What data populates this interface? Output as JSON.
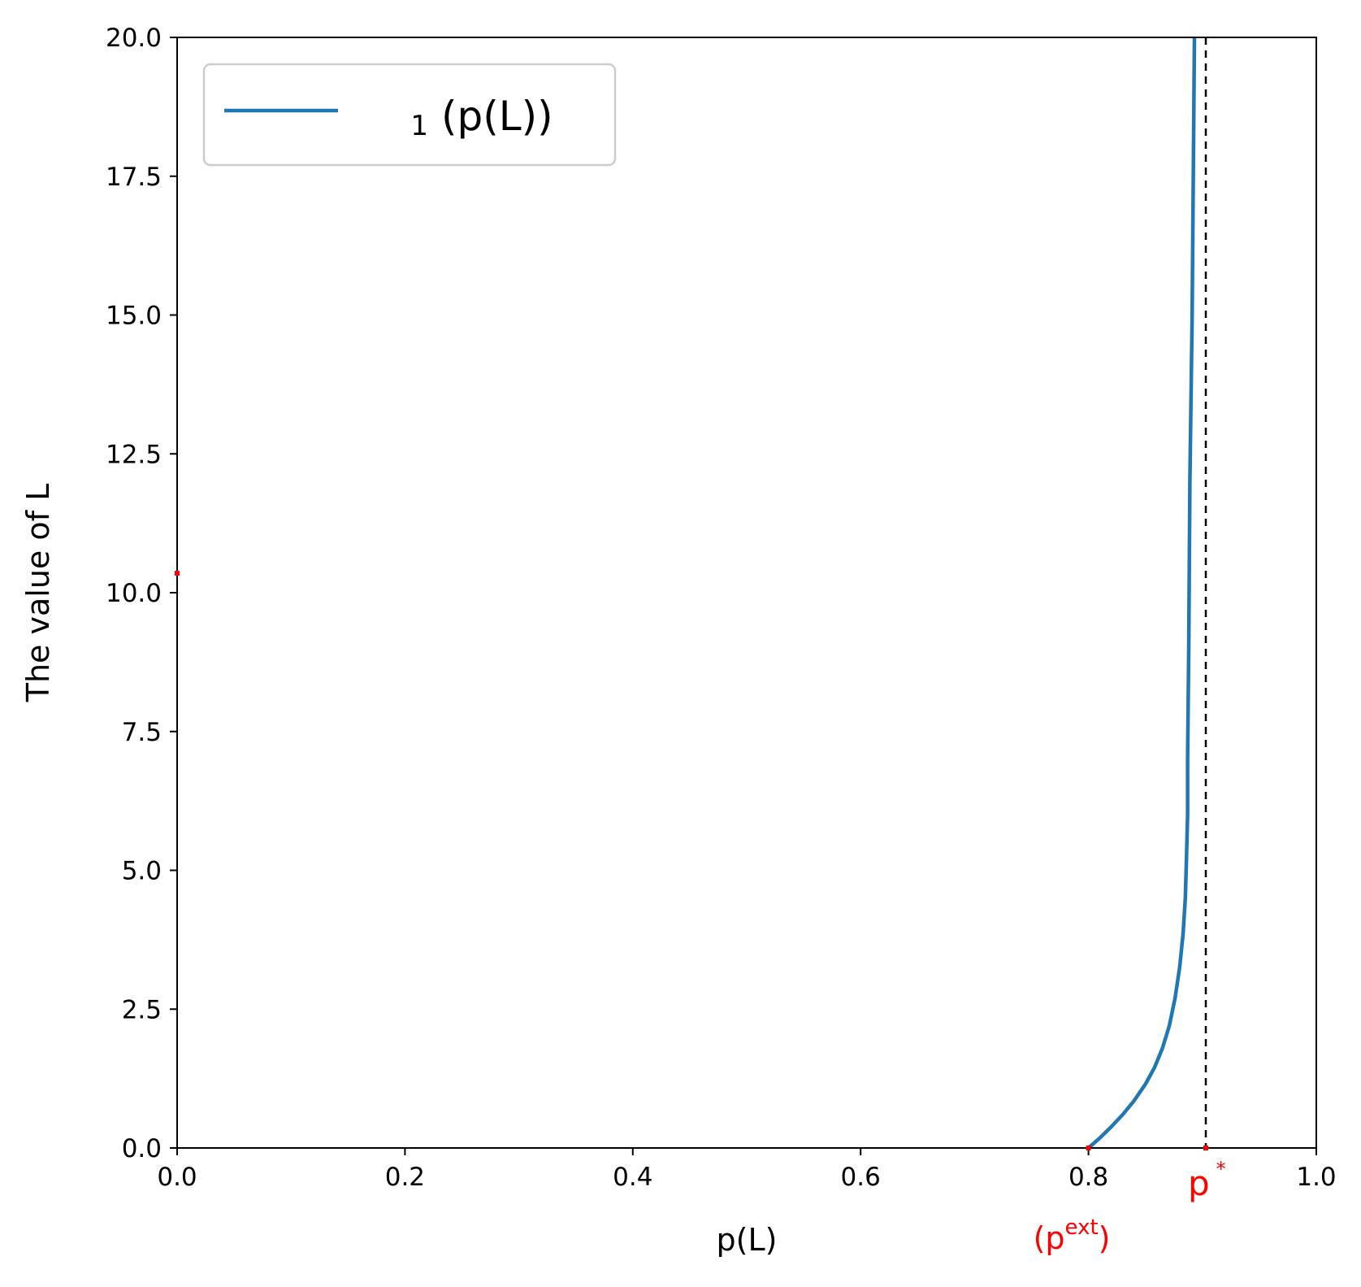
{
  "chart_data": {
    "type": "line",
    "xlabel": "p(L)",
    "ylabel": "The value of L",
    "xlim": [
      0.0,
      1.0
    ],
    "ylim": [
      0.0,
      20.0
    ],
    "xticks": [
      "0.0",
      "0.2",
      "0.4",
      "0.6",
      "0.8",
      "1.0"
    ],
    "yticks": [
      "0.0",
      "2.5",
      "5.0",
      "7.5",
      "10.0",
      "12.5",
      "15.0",
      "17.5",
      "20.0"
    ],
    "grid": false,
    "legend_position": "upper-left",
    "legend": {
      "label": "(p(L))",
      "subscript": "1"
    },
    "series": [
      {
        "name": "₁(p(L))",
        "color": "#1f77b4",
        "x": [
          0.8,
          0.81,
          0.82,
          0.83,
          0.84,
          0.85,
          0.858,
          0.865,
          0.871,
          0.876,
          0.88,
          0.883,
          0.885,
          0.886,
          0.887,
          0.887,
          0.888,
          0.889,
          0.891,
          0.892,
          0.893
        ],
        "y": [
          0.0,
          0.18,
          0.38,
          0.6,
          0.85,
          1.15,
          1.45,
          1.8,
          2.2,
          2.7,
          3.25,
          3.85,
          4.5,
          5.2,
          6.0,
          7.0,
          9.0,
          12.0,
          15.0,
          17.5,
          20.0
        ]
      }
    ],
    "reference_line": {
      "x": 0.903,
      "style": "dashed",
      "color": "#000000"
    },
    "annotations": [
      {
        "text": "p",
        "superscript": "*",
        "x": 0.903,
        "color": "#ff0000"
      },
      {
        "text": "(p",
        "superscript": "ext",
        "suffix": ")",
        "x": 0.8,
        "color": "#ff0000"
      }
    ],
    "markers": [
      {
        "x": 0.8,
        "y": 0.0,
        "color": "#ff0000"
      },
      {
        "x": 0.903,
        "y": 0.0,
        "color": "#ff0000"
      },
      {
        "x": 0.0,
        "y": 10.35,
        "color": "#ff0000"
      }
    ]
  }
}
